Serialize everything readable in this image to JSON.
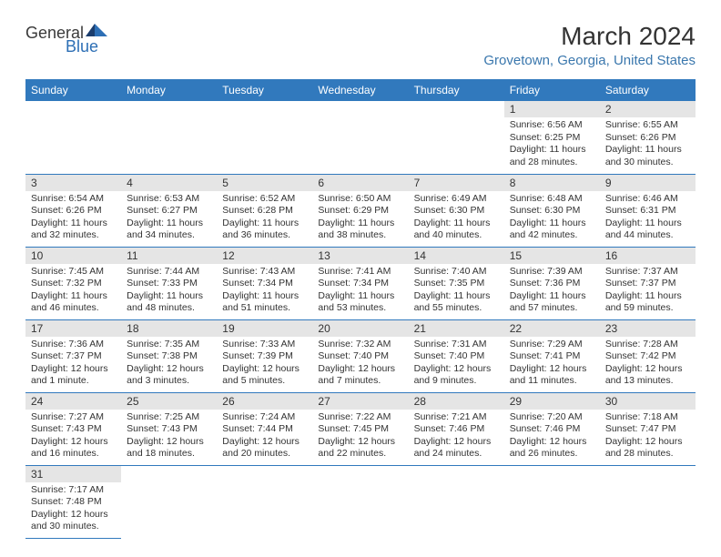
{
  "logo": {
    "text1": "General",
    "text2": "Blue"
  },
  "title": "March 2024",
  "location": "Grovetown, Georgia, United States",
  "header_bg": "#3179bd",
  "days_of_week": [
    "Sunday",
    "Monday",
    "Tuesday",
    "Wednesday",
    "Thursday",
    "Friday",
    "Saturday"
  ],
  "weeks": [
    [
      null,
      null,
      null,
      null,
      null,
      {
        "n": "1",
        "sr": "6:56 AM",
        "ss": "6:25 PM",
        "dl": "11 hours and 28 minutes."
      },
      {
        "n": "2",
        "sr": "6:55 AM",
        "ss": "6:26 PM",
        "dl": "11 hours and 30 minutes."
      }
    ],
    [
      {
        "n": "3",
        "sr": "6:54 AM",
        "ss": "6:26 PM",
        "dl": "11 hours and 32 minutes."
      },
      {
        "n": "4",
        "sr": "6:53 AM",
        "ss": "6:27 PM",
        "dl": "11 hours and 34 minutes."
      },
      {
        "n": "5",
        "sr": "6:52 AM",
        "ss": "6:28 PM",
        "dl": "11 hours and 36 minutes."
      },
      {
        "n": "6",
        "sr": "6:50 AM",
        "ss": "6:29 PM",
        "dl": "11 hours and 38 minutes."
      },
      {
        "n": "7",
        "sr": "6:49 AM",
        "ss": "6:30 PM",
        "dl": "11 hours and 40 minutes."
      },
      {
        "n": "8",
        "sr": "6:48 AM",
        "ss": "6:30 PM",
        "dl": "11 hours and 42 minutes."
      },
      {
        "n": "9",
        "sr": "6:46 AM",
        "ss": "6:31 PM",
        "dl": "11 hours and 44 minutes."
      }
    ],
    [
      {
        "n": "10",
        "sr": "7:45 AM",
        "ss": "7:32 PM",
        "dl": "11 hours and 46 minutes."
      },
      {
        "n": "11",
        "sr": "7:44 AM",
        "ss": "7:33 PM",
        "dl": "11 hours and 48 minutes."
      },
      {
        "n": "12",
        "sr": "7:43 AM",
        "ss": "7:34 PM",
        "dl": "11 hours and 51 minutes."
      },
      {
        "n": "13",
        "sr": "7:41 AM",
        "ss": "7:34 PM",
        "dl": "11 hours and 53 minutes."
      },
      {
        "n": "14",
        "sr": "7:40 AM",
        "ss": "7:35 PM",
        "dl": "11 hours and 55 minutes."
      },
      {
        "n": "15",
        "sr": "7:39 AM",
        "ss": "7:36 PM",
        "dl": "11 hours and 57 minutes."
      },
      {
        "n": "16",
        "sr": "7:37 AM",
        "ss": "7:37 PM",
        "dl": "11 hours and 59 minutes."
      }
    ],
    [
      {
        "n": "17",
        "sr": "7:36 AM",
        "ss": "7:37 PM",
        "dl": "12 hours and 1 minute."
      },
      {
        "n": "18",
        "sr": "7:35 AM",
        "ss": "7:38 PM",
        "dl": "12 hours and 3 minutes."
      },
      {
        "n": "19",
        "sr": "7:33 AM",
        "ss": "7:39 PM",
        "dl": "12 hours and 5 minutes."
      },
      {
        "n": "20",
        "sr": "7:32 AM",
        "ss": "7:40 PM",
        "dl": "12 hours and 7 minutes."
      },
      {
        "n": "21",
        "sr": "7:31 AM",
        "ss": "7:40 PM",
        "dl": "12 hours and 9 minutes."
      },
      {
        "n": "22",
        "sr": "7:29 AM",
        "ss": "7:41 PM",
        "dl": "12 hours and 11 minutes."
      },
      {
        "n": "23",
        "sr": "7:28 AM",
        "ss": "7:42 PM",
        "dl": "12 hours and 13 minutes."
      }
    ],
    [
      {
        "n": "24",
        "sr": "7:27 AM",
        "ss": "7:43 PM",
        "dl": "12 hours and 16 minutes."
      },
      {
        "n": "25",
        "sr": "7:25 AM",
        "ss": "7:43 PM",
        "dl": "12 hours and 18 minutes."
      },
      {
        "n": "26",
        "sr": "7:24 AM",
        "ss": "7:44 PM",
        "dl": "12 hours and 20 minutes."
      },
      {
        "n": "27",
        "sr": "7:22 AM",
        "ss": "7:45 PM",
        "dl": "12 hours and 22 minutes."
      },
      {
        "n": "28",
        "sr": "7:21 AM",
        "ss": "7:46 PM",
        "dl": "12 hours and 24 minutes."
      },
      {
        "n": "29",
        "sr": "7:20 AM",
        "ss": "7:46 PM",
        "dl": "12 hours and 26 minutes."
      },
      {
        "n": "30",
        "sr": "7:18 AM",
        "ss": "7:47 PM",
        "dl": "12 hours and 28 minutes."
      }
    ],
    [
      {
        "n": "31",
        "sr": "7:17 AM",
        "ss": "7:48 PM",
        "dl": "12 hours and 30 minutes."
      },
      null,
      null,
      null,
      null,
      null,
      null
    ]
  ],
  "labels": {
    "sunrise": "Sunrise: ",
    "sunset": "Sunset: ",
    "daylight": "Daylight: "
  }
}
